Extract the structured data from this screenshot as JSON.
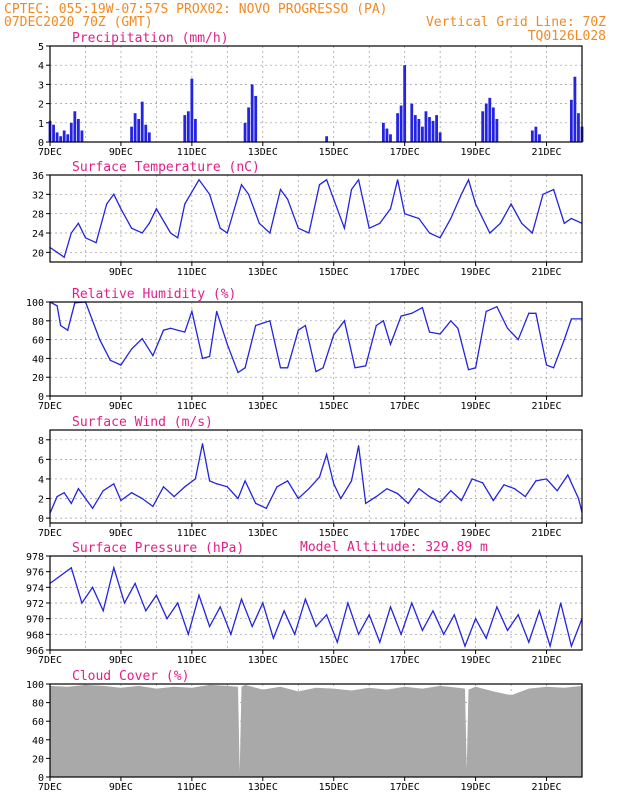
{
  "header": {
    "line1": "CPTEC:    055:19W-07:57S   PROX02: NOVO PROGRESSO (PA)",
    "date": "07DEC2020 70Z (GMT)",
    "grid_note": "Vertical Grid Line: 70Z",
    "run_code": "TQ0126L028"
  },
  "model_altitude_text": "Model Altitude: 329.89 m",
  "chart_data": [
    {
      "id": "precipitation",
      "type": "bar",
      "title": "Precipitation (mm/h)",
      "x_ticks": [
        "7DEC",
        "9DEC",
        "11DEC",
        "13DEC",
        "15DEC",
        "17DEC",
        "19DEC",
        "21DEC"
      ],
      "ylim": [
        0,
        5
      ],
      "y_ticks": [
        0,
        1,
        2,
        3,
        4,
        5
      ],
      "color": "#2424e0",
      "x": [
        7.0,
        7.1,
        7.2,
        7.3,
        7.4,
        7.5,
        7.6,
        7.7,
        7.8,
        7.9,
        9.3,
        9.4,
        9.5,
        9.6,
        9.7,
        9.8,
        10.8,
        10.9,
        11.0,
        11.1,
        12.5,
        12.6,
        12.7,
        12.8,
        14.8,
        16.4,
        16.5,
        16.6,
        16.8,
        16.9,
        17.0,
        17.2,
        17.3,
        17.4,
        17.5,
        17.6,
        17.7,
        17.8,
        17.9,
        18.0,
        19.2,
        19.3,
        19.4,
        19.5,
        19.6,
        20.6,
        20.7,
        20.8,
        21.7,
        21.8,
        21.9,
        22.0
      ],
      "values": [
        1.1,
        0.9,
        0.5,
        0.3,
        0.6,
        0.4,
        1.0,
        1.6,
        1.2,
        0.6,
        0.8,
        1.5,
        1.2,
        2.1,
        0.9,
        0.5,
        1.4,
        1.6,
        3.3,
        1.2,
        1.0,
        1.8,
        3.0,
        2.4,
        0.3,
        1.0,
        0.7,
        0.4,
        1.5,
        1.9,
        4.0,
        2.0,
        1.4,
        1.2,
        0.8,
        1.6,
        1.3,
        1.1,
        1.4,
        0.5,
        1.6,
        2.0,
        2.3,
        1.8,
        1.2,
        0.6,
        0.8,
        0.4,
        2.2,
        3.4,
        1.5,
        0.8
      ]
    },
    {
      "id": "temperature",
      "type": "line",
      "title": "Surface Temperature (nC)",
      "x_ticks": [
        "9DEC",
        "11DEC",
        "13DEC",
        "15DEC",
        "17DEC",
        "19DEC",
        "21DEC"
      ],
      "ylim": [
        18,
        36
      ],
      "y_ticks": [
        20,
        24,
        28,
        32,
        36
      ],
      "color": "#2424e0",
      "x": [
        7.0,
        7.2,
        7.4,
        7.6,
        7.8,
        8.0,
        8.3,
        8.6,
        8.8,
        9.0,
        9.3,
        9.6,
        9.8,
        10.0,
        10.4,
        10.6,
        10.8,
        11.2,
        11.5,
        11.8,
        12.0,
        12.4,
        12.6,
        12.9,
        13.2,
        13.5,
        13.7,
        14.0,
        14.3,
        14.6,
        14.8,
        15.0,
        15.3,
        15.5,
        15.7,
        16.0,
        16.3,
        16.6,
        16.8,
        17.0,
        17.4,
        17.7,
        18.0,
        18.3,
        18.6,
        18.8,
        19.0,
        19.4,
        19.7,
        20.0,
        20.3,
        20.6,
        20.9,
        21.2,
        21.5,
        21.7,
        22.0
      ],
      "values": [
        21,
        20,
        19,
        24,
        26,
        23,
        22,
        30,
        32,
        29,
        25,
        24,
        26,
        29,
        24,
        23,
        30,
        35,
        32,
        25,
        24,
        34,
        32,
        26,
        24,
        33,
        31,
        25,
        24,
        34,
        35,
        31,
        25,
        33,
        35,
        25,
        26,
        29,
        35,
        28,
        27,
        24,
        23,
        27,
        32,
        35,
        30,
        24,
        26,
        30,
        26,
        24,
        32,
        33,
        26,
        27,
        26
      ]
    },
    {
      "id": "humidity",
      "type": "line",
      "title": "Relative Humidity (%)",
      "x_ticks": [
        "7DEC",
        "9DEC",
        "11DEC",
        "13DEC",
        "15DEC",
        "17DEC",
        "19DEC",
        "21DEC"
      ],
      "ylim": [
        0,
        100
      ],
      "y_ticks": [
        0,
        20,
        40,
        60,
        80,
        100
      ],
      "color": "#2424e0",
      "x": [
        7.0,
        7.2,
        7.3,
        7.5,
        7.7,
        8.0,
        8.4,
        8.7,
        9.0,
        9.3,
        9.6,
        9.9,
        10.2,
        10.4,
        10.8,
        11.0,
        11.3,
        11.5,
        11.7,
        12.0,
        12.3,
        12.5,
        12.8,
        13.2,
        13.5,
        13.7,
        14.0,
        14.2,
        14.5,
        14.7,
        15.0,
        15.3,
        15.6,
        15.9,
        16.2,
        16.4,
        16.6,
        16.9,
        17.2,
        17.5,
        17.7,
        18.0,
        18.3,
        18.5,
        18.8,
        19.0,
        19.3,
        19.6,
        19.9,
        20.2,
        20.5,
        20.7,
        21.0,
        21.2,
        21.5,
        21.7,
        22.0
      ],
      "values": [
        100,
        96,
        75,
        70,
        99,
        100,
        60,
        38,
        33,
        50,
        61,
        43,
        70,
        72,
        68,
        90,
        40,
        42,
        90,
        55,
        25,
        30,
        75,
        80,
        30,
        30,
        70,
        75,
        26,
        30,
        65,
        80,
        30,
        32,
        75,
        80,
        55,
        85,
        88,
        94,
        68,
        66,
        80,
        72,
        28,
        30,
        90,
        95,
        72,
        60,
        88,
        88,
        33,
        30,
        60,
        82,
        82
      ]
    },
    {
      "id": "wind",
      "type": "line",
      "title": "Surface Wind (m/s)",
      "x_ticks": [
        "7DEC",
        "9DEC",
        "11DEC",
        "13DEC",
        "15DEC",
        "17DEC",
        "19DEC",
        "21DEC"
      ],
      "ylim": [
        -0.5,
        9
      ],
      "y_ticks": [
        0,
        2,
        4,
        6,
        8
      ],
      "color": "#2424e0",
      "x": [
        7.0,
        7.2,
        7.4,
        7.6,
        7.8,
        8.0,
        8.2,
        8.5,
        8.8,
        9.0,
        9.3,
        9.6,
        9.9,
        10.2,
        10.5,
        10.8,
        11.1,
        11.3,
        11.5,
        11.7,
        12.0,
        12.3,
        12.5,
        12.8,
        13.1,
        13.4,
        13.7,
        14.0,
        14.3,
        14.6,
        14.8,
        15.0,
        15.2,
        15.5,
        15.7,
        15.9,
        16.2,
        16.5,
        16.8,
        17.1,
        17.4,
        17.7,
        18.0,
        18.3,
        18.6,
        18.9,
        19.2,
        19.5,
        19.8,
        20.1,
        20.4,
        20.7,
        21.0,
        21.3,
        21.6,
        21.9,
        22.0
      ],
      "values": [
        0.5,
        2.2,
        2.6,
        1.5,
        3.0,
        2.0,
        1.0,
        2.8,
        3.5,
        1.8,
        2.6,
        2.0,
        1.2,
        3.2,
        2.2,
        3.2,
        4.0,
        7.6,
        3.8,
        3.5,
        3.2,
        2.0,
        3.8,
        1.5,
        1.0,
        3.2,
        3.8,
        2.0,
        3.0,
        4.2,
        6.5,
        3.5,
        2.0,
        3.8,
        7.4,
        1.5,
        2.2,
        3.0,
        2.5,
        1.5,
        3.0,
        2.2,
        1.6,
        2.8,
        1.8,
        4.0,
        3.6,
        1.8,
        3.4,
        3.0,
        2.2,
        3.8,
        4.0,
        2.8,
        4.4,
        2.0,
        0.6
      ]
    },
    {
      "id": "pressure",
      "type": "line",
      "title": "Surface Pressure (hPa)",
      "x_ticks": [
        "7DEC",
        "9DEC",
        "11DEC",
        "13DEC",
        "15DEC",
        "17DEC",
        "19DEC",
        "21DEC"
      ],
      "ylim": [
        966,
        978
      ],
      "y_ticks": [
        966,
        968,
        970,
        972,
        974,
        976,
        978
      ],
      "color": "#2424e0",
      "x": [
        7.0,
        7.3,
        7.6,
        7.9,
        8.2,
        8.5,
        8.8,
        9.1,
        9.4,
        9.7,
        10.0,
        10.3,
        10.6,
        10.9,
        11.2,
        11.5,
        11.8,
        12.1,
        12.4,
        12.7,
        13.0,
        13.3,
        13.6,
        13.9,
        14.2,
        14.5,
        14.8,
        15.1,
        15.4,
        15.7,
        16.0,
        16.3,
        16.6,
        16.9,
        17.2,
        17.5,
        17.8,
        18.1,
        18.4,
        18.7,
        19.0,
        19.3,
        19.6,
        19.9,
        20.2,
        20.5,
        20.8,
        21.1,
        21.4,
        21.7,
        22.0
      ],
      "values": [
        974.5,
        975.5,
        976.5,
        972,
        974,
        971,
        976.5,
        972,
        974.5,
        971,
        973,
        970,
        972,
        968,
        973,
        969,
        971.5,
        968,
        972.5,
        969,
        972,
        967.5,
        971,
        968,
        972.5,
        969,
        970.5,
        967,
        972,
        968,
        970.5,
        967,
        971.5,
        968,
        972,
        968.5,
        971,
        968,
        970.5,
        966.5,
        970,
        967.5,
        971.5,
        968.5,
        970.5,
        967,
        971,
        966.5,
        972,
        966.5,
        970
      ]
    },
    {
      "id": "cloud",
      "type": "area",
      "title": "Cloud Cover (%)",
      "x_ticks": [
        "7DEC",
        "9DEC",
        "11DEC",
        "13DEC",
        "15DEC",
        "17DEC",
        "19DEC",
        "21DEC"
      ],
      "ylim": [
        0,
        100
      ],
      "y_ticks": [
        0,
        20,
        40,
        60,
        80,
        100
      ],
      "color": "#a9a9a9",
      "x": [
        7.0,
        7.5,
        8.0,
        8.5,
        9.0,
        9.5,
        10.0,
        10.5,
        11.0,
        11.5,
        12.0,
        12.3,
        12.35,
        12.4,
        12.5,
        13.0,
        13.5,
        14.0,
        14.5,
        15.0,
        15.5,
        16.0,
        16.5,
        17.0,
        17.5,
        18.0,
        18.5,
        18.7,
        18.75,
        18.8,
        19.0,
        19.5,
        20.0,
        20.5,
        21.0,
        21.5,
        22.0
      ],
      "values": [
        98,
        97,
        99,
        98,
        96,
        98,
        95,
        97,
        96,
        99,
        98,
        97,
        5,
        97,
        99,
        94,
        97,
        92,
        96,
        95,
        93,
        96,
        94,
        97,
        95,
        98,
        96,
        95,
        8,
        94,
        97,
        92,
        88,
        95,
        97,
        96,
        98
      ]
    }
  ]
}
